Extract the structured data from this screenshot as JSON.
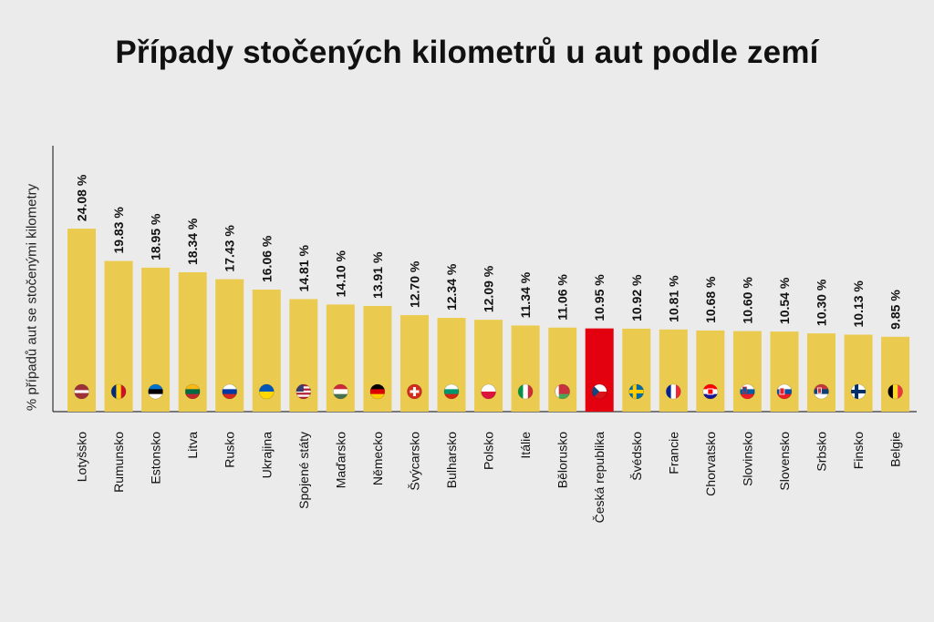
{
  "chart_data": {
    "type": "bar",
    "title": "Případy stočených kilometrů u aut podle zemí",
    "ylabel": "% případů aut se stočenými kilometry",
    "xlabel": "",
    "ylim": [
      0,
      35
    ],
    "categories": [
      "Lotyšsko",
      "Rumunsko",
      "Estonsko",
      "Litva",
      "Rusko",
      "Ukrajina",
      "Spojené státy",
      "Maďarsko",
      "Německo",
      "Švýcarsko",
      "Bulharsko",
      "Polsko",
      "Itálie",
      "Bělorusko",
      "Česká republika",
      "Švédsko",
      "Francie",
      "Chorvatsko",
      "Slovinsko",
      "Slovensko",
      "Srbsko",
      "Finsko",
      "Belgie"
    ],
    "values": [
      24.08,
      19.83,
      18.95,
      18.34,
      17.43,
      16.06,
      14.81,
      14.1,
      13.91,
      12.7,
      12.34,
      12.09,
      11.34,
      11.06,
      10.95,
      10.92,
      10.81,
      10.68,
      10.6,
      10.54,
      10.3,
      10.13,
      9.85
    ],
    "value_labels": [
      "24.08 %",
      "19.83 %",
      "18.95 %",
      "18.34 %",
      "17.43 %",
      "16.06 %",
      "14.81 %",
      "14.10 %",
      "13.91 %",
      "12.70 %",
      "12.34 %",
      "12.09 %",
      "11.34 %",
      "11.06 %",
      "10.95 %",
      "10.92 %",
      "10.81 %",
      "10.68 %",
      "10.60 %",
      "10.54 %",
      "10.30 %",
      "10.13 %",
      "9.85 %"
    ],
    "flags": [
      "latvia-flag-icon",
      "romania-flag-icon",
      "estonia-flag-icon",
      "lithuania-flag-icon",
      "russia-flag-icon",
      "ukraine-flag-icon",
      "usa-flag-icon",
      "hungary-flag-icon",
      "germany-flag-icon",
      "switzerland-flag-icon",
      "bulgaria-flag-icon",
      "poland-flag-icon",
      "italy-flag-icon",
      "belarus-flag-icon",
      "czechia-flag-icon",
      "sweden-flag-icon",
      "france-flag-icon",
      "croatia-flag-icon",
      "slovenia-flag-icon",
      "slovakia-flag-icon",
      "serbia-flag-icon",
      "finland-flag-icon",
      "belgium-flag-icon"
    ],
    "highlight": "Česká republika",
    "grid": false,
    "legend": "none"
  },
  "colors": {
    "bar": "#ebcb4f",
    "highlight": "#e3000f",
    "background": "#ebebeb",
    "axis": "#333333",
    "text": "#111111"
  }
}
